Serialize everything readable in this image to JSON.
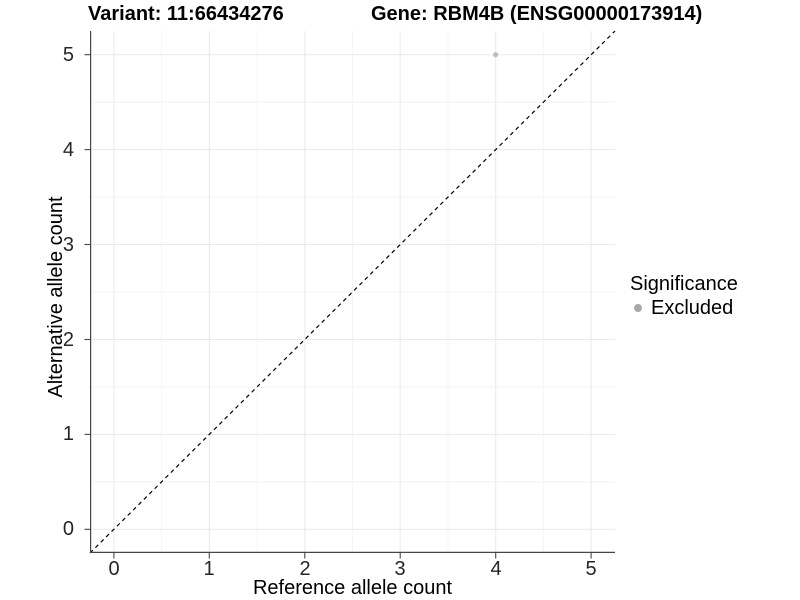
{
  "titles": {
    "variant": "Variant: 11:66434276",
    "gene": "Gene: RBM4B (ENSG00000173914)"
  },
  "axes": {
    "x": {
      "label": "Reference allele count",
      "ticks": [
        "0",
        "1",
        "2",
        "3",
        "4",
        "5"
      ]
    },
    "y": {
      "label": "Alternative allele count",
      "ticks": [
        "0",
        "1",
        "2",
        "3",
        "4",
        "5"
      ]
    }
  },
  "legend": {
    "title": "Significance",
    "items": [
      {
        "label": "Excluded",
        "color": "#a8a8a8"
      }
    ]
  },
  "colors": {
    "background": "#ffffff",
    "grid_major": "#e9e9e9",
    "grid_minor": "#f4f4f4",
    "axis_line": "#464646",
    "tick_mark": "#464646",
    "text": "#000000",
    "tick_label_text": "#262626"
  },
  "chart_data": {
    "type": "scatter",
    "title": "Variant: 11:66434276 | Gene: RBM4B (ENSG00000173914)",
    "xlabel": "Reference allele count",
    "ylabel": "Alternative allele count",
    "xlim": [
      -0.25,
      5.25
    ],
    "ylim": [
      -0.25,
      5.25
    ],
    "major_ticks": [
      0,
      1,
      2,
      3,
      4,
      5
    ],
    "minor_ticks": [
      0.5,
      1.5,
      2.5,
      3.5,
      4.5
    ],
    "grid": "major+minor",
    "legend_position": "right",
    "series": [
      {
        "name": "Excluded",
        "color": "#bdbdbd",
        "point_radius": 2.6,
        "points": [
          {
            "x": 4,
            "y": 5
          }
        ]
      }
    ],
    "reference_line": {
      "type": "identity y=x",
      "style": "dashed",
      "color": "#000000",
      "x1": -0.25,
      "y1": -0.25,
      "x2": 5.25,
      "y2": 5.25
    }
  }
}
